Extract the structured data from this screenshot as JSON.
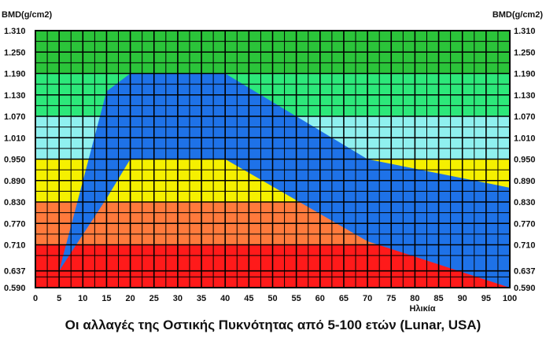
{
  "caption": "Οι αλλαγές της Οστικής Πυκνότητας από 5-100 ετών (Lunar, USA)",
  "chart_data": {
    "type": "area",
    "ylabel_left": "BMD(g/cm2)",
    "ylabel_right": "BMD(g/cm2)",
    "xlabel": "Ηλικία",
    "xlim": [
      0,
      100
    ],
    "ylim": [
      0.59,
      1.31
    ],
    "x_ticks": [
      "0",
      "5",
      "10",
      "15",
      "20",
      "25",
      "30",
      "35",
      "40",
      "45",
      "50",
      "55",
      "60",
      "65",
      "70",
      "75",
      "80",
      "85",
      "90",
      "95",
      "100"
    ],
    "y_ticks": [
      {
        "value": 1.31,
        "label": "1.310"
      },
      {
        "value": 1.25,
        "label": "1.250"
      },
      {
        "value": 1.19,
        "label": "1.190"
      },
      {
        "value": 1.13,
        "label": "1.130"
      },
      {
        "value": 1.07,
        "label": "1.070"
      },
      {
        "value": 1.01,
        "label": "1.010"
      },
      {
        "value": 0.95,
        "label": "0.950"
      },
      {
        "value": 0.89,
        "label": "0.890"
      },
      {
        "value": 0.83,
        "label": "0.830"
      },
      {
        "value": 0.77,
        "label": "0.770"
      },
      {
        "value": 0.71,
        "label": "0.710",
        "color": "#1f3fb8"
      },
      {
        "value": 0.637,
        "label": "0.637"
      },
      {
        "value": 0.59,
        "label": "0.590",
        "color": "#1f3fb8"
      }
    ],
    "background_bands": [
      {
        "from": 1.19,
        "to": 1.31,
        "color": "#2bc43a"
      },
      {
        "from": 1.07,
        "to": 1.19,
        "color": "#2de87a"
      },
      {
        "from": 0.95,
        "to": 1.07,
        "color": "#8ff0ef"
      },
      {
        "from": 0.83,
        "to": 0.95,
        "color": "#f5f000"
      },
      {
        "from": 0.71,
        "to": 0.83,
        "color": "#ff7a3c"
      },
      {
        "from": 0.59,
        "to": 0.71,
        "color": "#ff1a1a"
      }
    ],
    "band": {
      "color": "#1e72e8",
      "upper": [
        {
          "x": 5,
          "y": 0.637
        },
        {
          "x": 15,
          "y": 1.14
        },
        {
          "x": 20,
          "y": 1.19
        },
        {
          "x": 40,
          "y": 1.19
        },
        {
          "x": 70,
          "y": 0.95
        },
        {
          "x": 100,
          "y": 0.87
        }
      ],
      "lower": [
        {
          "x": 5,
          "y": 0.637
        },
        {
          "x": 15,
          "y": 0.84
        },
        {
          "x": 20,
          "y": 0.95
        },
        {
          "x": 40,
          "y": 0.95
        },
        {
          "x": 70,
          "y": 0.72
        },
        {
          "x": 100,
          "y": 0.59
        }
      ]
    },
    "grid": true,
    "grid_color": "#000000"
  }
}
